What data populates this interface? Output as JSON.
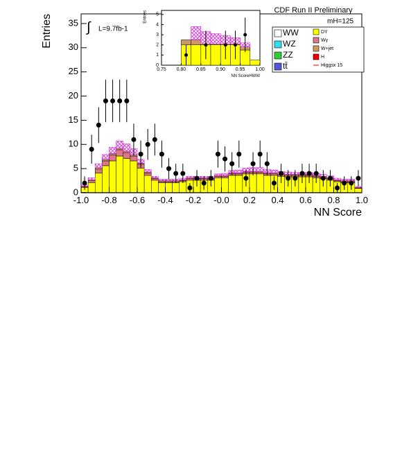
{
  "chart_data": [
    {
      "type": "histogram",
      "title": "CDF Run II Preliminary",
      "annotations": [
        "mH=125",
        "L=9.7fb-1"
      ],
      "xlabel": "NN Score",
      "ylabel": "Entries",
      "bins": [
        -1.0,
        -0.95,
        -0.9,
        -0.85,
        -0.8,
        -0.75,
        -0.7,
        -0.65,
        -0.6,
        -0.55,
        -0.5,
        -0.45,
        -0.4,
        -0.35,
        -0.3,
        -0.25,
        -0.2,
        -0.15,
        -0.1,
        -0.05,
        0.0,
        0.05,
        0.1,
        0.15,
        0.2,
        0.25,
        0.3,
        0.35,
        0.4,
        0.45,
        0.5,
        0.55,
        0.6,
        0.65,
        0.7,
        0.75,
        0.8,
        0.85,
        0.9,
        0.95,
        1.0
      ],
      "xlim": [
        -1.0,
        1.0
      ],
      "ylim": [
        0,
        37
      ],
      "xticks": [
        {
          "value": -1.0,
          "label": "-1.0"
        },
        {
          "value": -0.8,
          "label": "-0.8"
        },
        {
          "value": -0.6,
          "label": "-0.6"
        },
        {
          "value": -0.4,
          "label": "-0.4"
        },
        {
          "value": -0.2,
          "label": "-0.2"
        },
        {
          "value": 0.0,
          "label": "-0.0"
        },
        {
          "value": 0.2,
          "label": "0.2"
        },
        {
          "value": 0.4,
          "label": "0.4"
        },
        {
          "value": 0.6,
          "label": "0.6"
        },
        {
          "value": 0.8,
          "label": "0.8"
        },
        {
          "value": 1.0,
          "label": "1.0"
        }
      ],
      "yticks": [
        0,
        5,
        10,
        15,
        20,
        25,
        30,
        35
      ],
      "legend": true,
      "series": [
        {
          "name": "WW",
          "color": "#ffffff",
          "values": [
            0.1,
            0.1,
            0.1,
            0.1,
            0.1,
            0.1,
            0.1,
            0.1,
            0.1,
            0.1,
            0.1,
            0.1,
            0.1,
            0.1,
            0.1,
            0.1,
            0.1,
            0.1,
            0.1,
            0.1,
            0.1,
            0.1,
            0.1,
            0.1,
            0.1,
            0.1,
            0.1,
            0.1,
            0.1,
            0.1,
            0.1,
            0.1,
            0.1,
            0.1,
            0.1,
            0.1,
            0.1,
            0.1,
            0.1,
            0.1
          ]
        },
        {
          "name": "WZ",
          "color": "#33ddee",
          "values": [
            0,
            0,
            0,
            0,
            0,
            0,
            0,
            0,
            0,
            0,
            0,
            0,
            0,
            0,
            0,
            0,
            0,
            0,
            0,
            0,
            0,
            0,
            0,
            0,
            0,
            0,
            0,
            0,
            0,
            0,
            0,
            0,
            0,
            0,
            0,
            0,
            0,
            0,
            0,
            0
          ]
        },
        {
          "name": "ZZ",
          "color": "#33cc33",
          "values": [
            0,
            0,
            0,
            0,
            0,
            0,
            0,
            0,
            0,
            0,
            0,
            0,
            0,
            0,
            0,
            0,
            0,
            0,
            0,
            0,
            0,
            0,
            0,
            0,
            0,
            0,
            0,
            0,
            0,
            0,
            0,
            0,
            0,
            0,
            0,
            0,
            0,
            0,
            0,
            0
          ]
        },
        {
          "name": "tt̄",
          "color": "#5555dd",
          "values": [
            0,
            0,
            0,
            0,
            0,
            0,
            0,
            0,
            0,
            0,
            0,
            0,
            0,
            0,
            0,
            0,
            0,
            0,
            0,
            0,
            0,
            0,
            0,
            0,
            0,
            0,
            0,
            0,
            0,
            0,
            0,
            0,
            0,
            0,
            0,
            0,
            0,
            0,
            0,
            0
          ]
        },
        {
          "name": "DY",
          "color": "#ffff00",
          "values": [
            1,
            2,
            4,
            5.5,
            6.5,
            7.5,
            7,
            6.5,
            5,
            3.5,
            2.5,
            2,
            2,
            2,
            2.2,
            2.5,
            2.5,
            2.5,
            2.5,
            3,
            3,
            3.5,
            3.5,
            3.8,
            3.8,
            3.8,
            3.5,
            3.5,
            3.3,
            3.2,
            3.2,
            3.2,
            3.2,
            3,
            2.8,
            2.5,
            2.2,
            2,
            2,
            0.8
          ]
        },
        {
          "name": "Wγ",
          "color": "#dd7788",
          "values": [
            0.2,
            0.4,
            0.8,
            1.0,
            1.2,
            1.3,
            1.2,
            1.0,
            0.8,
            0.5,
            0.3,
            0.2,
            0.2,
            0.2,
            0.2,
            0.3,
            0.3,
            0.3,
            0.3,
            0.3,
            0.3,
            0.3,
            0.3,
            0.3,
            0.3,
            0.3,
            0.3,
            0.3,
            0.3,
            0.3,
            0.3,
            0.3,
            0.3,
            0.3,
            0.3,
            0.3,
            0.2,
            0.2,
            0.2,
            0.1
          ]
        },
        {
          "name": "W+jet",
          "color": "#cc9966",
          "values": [
            0.1,
            0.2,
            0.3,
            0.3,
            0.3,
            0.3,
            0.3,
            0.3,
            0.2,
            0.2,
            0.2,
            0.2,
            0.2,
            0.2,
            0.2,
            0.2,
            0.2,
            0.2,
            0.2,
            0.2,
            0.2,
            0.2,
            0.2,
            0.2,
            0.2,
            0.2,
            0.2,
            0.2,
            0.2,
            0.2,
            0.2,
            0.2,
            0.2,
            0.2,
            0.2,
            0.2,
            0.2,
            0.2,
            0.2,
            0.1
          ]
        },
        {
          "name": "H",
          "color": "#ee0000",
          "values": [
            0,
            0,
            0,
            0,
            0,
            0,
            0,
            0,
            0,
            0,
            0,
            0,
            0,
            0,
            0,
            0,
            0,
            0,
            0,
            0,
            0,
            0,
            0,
            0,
            0,
            0,
            0,
            0,
            0,
            0,
            0,
            0,
            0,
            0,
            0,
            0,
            0,
            0,
            0,
            0
          ]
        },
        {
          "name": "Higgsx 15",
          "color": "#dd22dd",
          "signal": true,
          "values": [
            0.2,
            0.4,
            0.8,
            1,
            1.3,
            1.5,
            1.5,
            1.2,
            0.8,
            0.5,
            0.3,
            0.3,
            0.3,
            0.3,
            0.3,
            0.3,
            0.3,
            0.3,
            0.3,
            0.3,
            0.4,
            0.5,
            0.6,
            0.7,
            0.8,
            0.8,
            0.7,
            0.6,
            0.5,
            0.5,
            0.4,
            0.4,
            0.4,
            0.4,
            0.4,
            0.4,
            0.3,
            0.3,
            0.3,
            0.2
          ]
        }
      ],
      "data": {
        "values": [
          2,
          9,
          14,
          19,
          19,
          19,
          19,
          11,
          8,
          10,
          11,
          8,
          5,
          4,
          4,
          1,
          3,
          2,
          3,
          8,
          7,
          6,
          8,
          3,
          6,
          8,
          6,
          2,
          4,
          3,
          3,
          4,
          4,
          4,
          3,
          3,
          1,
          2,
          2,
          3
        ],
        "errors": [
          1.4,
          3,
          3.7,
          4.4,
          4.4,
          4.4,
          4.4,
          3.3,
          2.8,
          3.2,
          3.3,
          2.8,
          2.2,
          2,
          2,
          1,
          1.7,
          1.4,
          1.7,
          2.8,
          2.6,
          2.4,
          2.8,
          1.7,
          2.4,
          2.8,
          2.4,
          1.4,
          2,
          1.7,
          1.7,
          2,
          2,
          2,
          1.7,
          1.7,
          1,
          1.4,
          1.4,
          1.7
        ]
      }
    },
    {
      "type": "histogram",
      "xlabel": "NN ScoreHWW",
      "ylabel": "Entries",
      "bins": [
        0.75,
        0.775,
        0.8,
        0.825,
        0.85,
        0.875,
        0.9,
        0.925,
        0.95,
        0.975,
        1.0
      ],
      "xlim": [
        0.75,
        1.0
      ],
      "ylim": [
        0,
        5.4
      ],
      "xticks": [
        0.75,
        {
          "value": 0.8,
          "label": "0.80"
        },
        0.85,
        {
          "value": 0.9,
          "label": "0.90"
        },
        0.95,
        {
          "value": 1.0,
          "label": "1.00"
        }
      ],
      "yticks": [
        0,
        1,
        2,
        3,
        4,
        5
      ],
      "legend": false,
      "series": [
        {
          "name": "DY",
          "color": "#ffff00",
          "values": [
            0,
            0,
            2,
            2,
            2,
            2,
            2,
            2,
            1.5,
            0.5
          ]
        },
        {
          "name": "W+jet",
          "color": "#cc9966",
          "values": [
            0,
            0,
            0.5,
            0.5,
            0.1,
            0.1,
            0.1,
            0.1,
            0.3,
            0
          ]
        },
        {
          "name": "Higgsx 15",
          "color": "#dd22dd",
          "signal": true,
          "values": [
            0,
            0,
            0,
            1.3,
            1.2,
            1,
            0.8,
            0.6,
            0.4,
            0
          ]
        }
      ],
      "data": {
        "values": [
          null,
          null,
          1,
          null,
          2,
          null,
          2,
          2,
          3,
          null
        ],
        "errors": [
          null,
          null,
          1,
          null,
          1.4,
          null,
          1.4,
          1.4,
          1.7,
          null
        ]
      }
    }
  ]
}
